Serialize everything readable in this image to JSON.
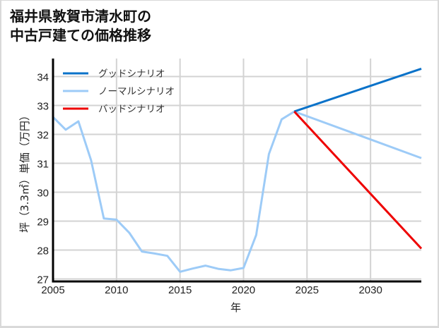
{
  "title": "福井県敦賀市清水町の\n中古戸建ての価格推移",
  "chart_data": {
    "type": "line",
    "title": "福井県敦賀市清水町の中古戸建ての価格推移",
    "xlabel": "年",
    "ylabel": "坪（3.3㎡）単価（万円）",
    "xlim": [
      2005,
      2034
    ],
    "ylim": [
      26.9,
      34.6
    ],
    "xticks": [
      2005,
      2010,
      2015,
      2020,
      2025,
      2030
    ],
    "yticks": [
      27,
      28,
      29,
      30,
      31,
      32,
      33,
      34
    ],
    "grid": true,
    "legend_position": "upper left",
    "series": [
      {
        "name": "グッドシナリオ",
        "color": "#0a72c9",
        "x": [
          2024,
          2034
        ],
        "values": [
          32.79,
          34.27
        ]
      },
      {
        "name": "ノーマルシナリオ",
        "color": "#9dcbf7",
        "x": [
          2005,
          2006,
          2007,
          2008,
          2009,
          2010,
          2011,
          2012,
          2013,
          2014,
          2015,
          2016,
          2017,
          2018,
          2019,
          2020,
          2021,
          2022,
          2023,
          2024,
          2034
        ],
        "values": [
          32.6,
          32.16,
          32.45,
          31.1,
          29.09,
          29.05,
          28.6,
          27.95,
          27.88,
          27.8,
          27.25,
          27.36,
          27.46,
          27.35,
          27.3,
          27.38,
          28.52,
          31.32,
          32.52,
          32.79,
          31.18
        ]
      },
      {
        "name": "バッドシナリオ",
        "color": "#ee0000",
        "x": [
          2024,
          2034
        ],
        "values": [
          32.79,
          28.05
        ]
      }
    ]
  }
}
